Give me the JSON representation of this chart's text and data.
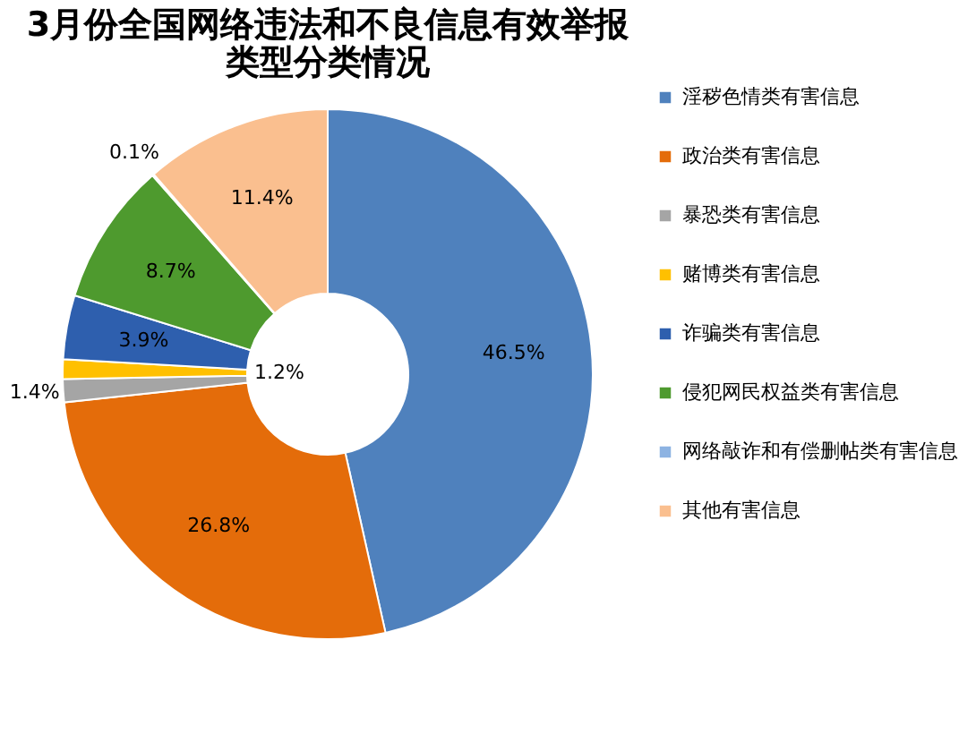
{
  "chart_data": {
    "type": "donut",
    "title": [
      "3月份全国网络违法和不良信息有效举报",
      "类型分类情况"
    ],
    "categories": [
      "淫秽色情类有害信息",
      "政治类有害信息",
      "暴恐类有害信息",
      "赌博类有害信息",
      "诈骗类有害信息",
      "侵犯网民权益类有害信息",
      "网络敲诈和有偿删帖类有害信息",
      "其他有害信息"
    ],
    "values": [
      46.5,
      26.8,
      1.4,
      1.2,
      3.9,
      8.7,
      0.1,
      11.4
    ],
    "colors": [
      "#4f81bd",
      "#e46c0a",
      "#a5a5a5",
      "#ffc000",
      "#2e5fae",
      "#4e9a2e",
      "#8db3e2",
      "#fabf8f"
    ],
    "value_labels": [
      "46.5%",
      "26.8%",
      "1.4%",
      "1.2%",
      "3.9%",
      "8.7%",
      "0.1%",
      "11.4%"
    ],
    "legend": "right"
  }
}
